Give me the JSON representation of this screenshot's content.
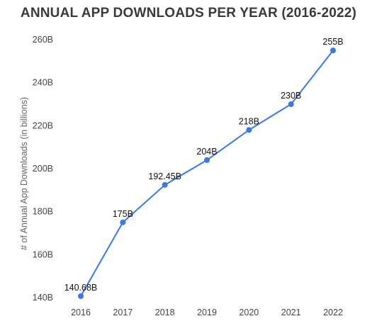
{
  "chart_data": {
    "type": "line",
    "title": "ANNUAL APP DOWNLOADS PER YEAR (2016-2022)",
    "xlabel": "",
    "ylabel": "# of Annual App Downloads (in billions)",
    "ylim": [
      140,
      260
    ],
    "yticks": [
      140,
      160,
      180,
      200,
      220,
      240,
      260
    ],
    "ytick_labels": [
      "140B",
      "160B",
      "180B",
      "200B",
      "220B",
      "240B",
      "260B"
    ],
    "categories": [
      "2016",
      "2017",
      "2018",
      "2019",
      "2020",
      "2021",
      "2022"
    ],
    "values": [
      140.68,
      175,
      192.45,
      204,
      218,
      230,
      255
    ],
    "data_labels": [
      "140.68B",
      "175B",
      "192.45B",
      "204B",
      "218B",
      "230B",
      "255B"
    ],
    "grid": false,
    "colors": {
      "line": "#3b78e7",
      "marker": "#3b78e7",
      "title": "#3a3a3a"
    }
  }
}
